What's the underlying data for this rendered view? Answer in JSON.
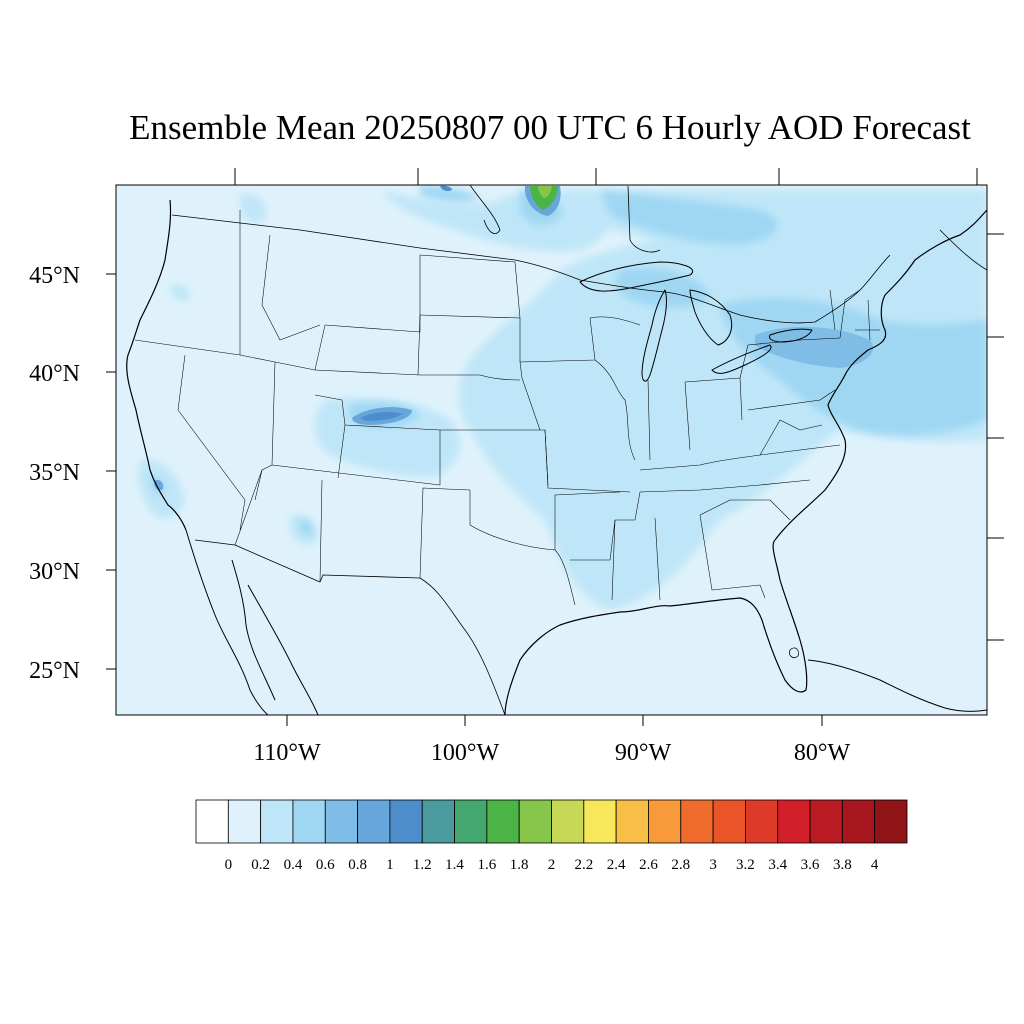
{
  "title": "Ensemble Mean 20250807 00 UTC 6 Hourly AOD Forecast",
  "map": {
    "region": "Continental United States",
    "lat_labels": [
      "45°N",
      "40°N",
      "35°N",
      "30°N",
      "25°N"
    ],
    "lon_labels": [
      "110°W",
      "100°W",
      "90°W",
      "80°W"
    ],
    "background_color": "#dff2fb"
  },
  "colorbar": {
    "labels": [
      "0",
      "0.2",
      "0.4",
      "0.6",
      "0.8",
      "1",
      "1.2",
      "1.4",
      "1.6",
      "1.8",
      "2",
      "2.2",
      "2.4",
      "2.6",
      "2.8",
      "3",
      "3.2",
      "3.4",
      "3.6",
      "3.8",
      "4"
    ],
    "colors": [
      "#ffffff",
      "#dff2fb",
      "#bfe6f8",
      "#9fd7f3",
      "#80bde6",
      "#67a6db",
      "#4d8dcb",
      "#4a9b9e",
      "#44a86e",
      "#4ab446",
      "#87c54b",
      "#c6d855",
      "#f6e85a",
      "#f9be46",
      "#f99a3a",
      "#f06c2c",
      "#e95429",
      "#de3a29",
      "#d31f2a",
      "#ba1a22",
      "#a8171f",
      "#901418"
    ]
  }
}
